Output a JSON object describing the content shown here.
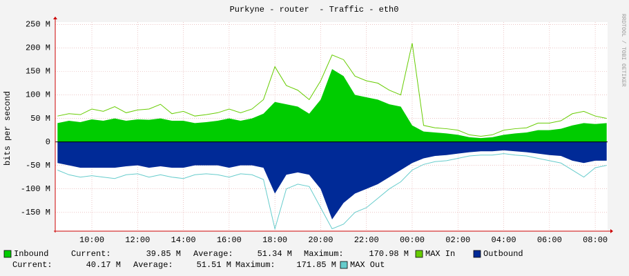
{
  "chart_data": {
    "type": "area",
    "title": "Purkyne - router  - Traffic - eth0",
    "y_label": "bits per second",
    "side_note": "RRDTOOL / TOBI OETIKER",
    "stat_labels": [
      "Current:",
      "Average:",
      "Maximum:"
    ],
    "x": [
      8.5,
      9,
      9.5,
      10,
      10.5,
      11,
      11.5,
      12,
      12.5,
      13,
      13.5,
      14,
      14.5,
      15,
      15.5,
      16,
      16.5,
      17,
      17.5,
      18,
      18.5,
      19,
      19.5,
      20,
      20.5,
      21,
      21.5,
      22,
      22.5,
      23,
      23.5,
      24,
      24.5,
      25,
      25.5,
      26,
      26.5,
      27,
      27.5,
      28,
      28.5,
      29,
      29.5,
      30,
      30.5,
      31,
      31.5,
      32,
      32.5
    ],
    "xlim": [
      8.4,
      32.54
    ],
    "xticks": [
      {
        "value": 10,
        "label": "10:00"
      },
      {
        "value": 12,
        "label": "12:00"
      },
      {
        "value": 14,
        "label": "14:00"
      },
      {
        "value": 16,
        "label": "16:00"
      },
      {
        "value": 18,
        "label": "18:00"
      },
      {
        "value": 20,
        "label": "20:00"
      },
      {
        "value": 22,
        "label": "22:00"
      },
      {
        "value": 24,
        "label": "00:00"
      },
      {
        "value": 26,
        "label": "02:00"
      },
      {
        "value": 28,
        "label": "04:00"
      },
      {
        "value": 30,
        "label": "06:00"
      },
      {
        "value": 32,
        "label": "08:00"
      }
    ],
    "ylim": [
      -190,
      255
    ],
    "yticks": [
      {
        "value": 250,
        "label": "250 M"
      },
      {
        "value": 200,
        "label": "200 M"
      },
      {
        "value": 150,
        "label": "150 M"
      },
      {
        "value": 100,
        "label": "100 M"
      },
      {
        "value": 50,
        "label": "50 M"
      },
      0,
      {
        "value": -50,
        "label": "-50 M"
      },
      {
        "value": -100,
        "label": "-100 M"
      },
      {
        "value": -150,
        "label": "-150 M"
      }
    ],
    "grid": true,
    "series": [
      {
        "name": "Inbound",
        "color": "#00cc00",
        "style": "area",
        "values": [
          40,
          45,
          42,
          48,
          45,
          50,
          45,
          48,
          47,
          50,
          45,
          45,
          40,
          42,
          45,
          50,
          45,
          50,
          60,
          85,
          80,
          75,
          60,
          90,
          155,
          140,
          100,
          95,
          90,
          80,
          75,
          35,
          22,
          20,
          18,
          15,
          10,
          8,
          10,
          15,
          18,
          20,
          25,
          25,
          28,
          35,
          40,
          38,
          40
        ],
        "stats": [
          {
            "value": 39.85,
            "label": "39.85 M"
          },
          {
            "value": 51.34,
            "label": "51.34 M"
          },
          {
            "value": 170.98,
            "label": "170.98 M"
          }
        ]
      },
      {
        "name": "MAX In",
        "color": "#66cc00",
        "style": "line",
        "values": [
          55,
          60,
          58,
          70,
          65,
          75,
          62,
          68,
          70,
          80,
          60,
          65,
          55,
          58,
          62,
          70,
          62,
          70,
          90,
          160,
          120,
          110,
          90,
          130,
          185,
          175,
          140,
          130,
          125,
          110,
          100,
          210,
          35,
          30,
          28,
          25,
          15,
          12,
          15,
          25,
          28,
          30,
          40,
          40,
          45,
          60,
          65,
          55,
          50
        ]
      },
      {
        "name": "Outbound",
        "color": "#002a97",
        "style": "area",
        "values": [
          -45,
          -50,
          -55,
          -55,
          -55,
          -55,
          -52,
          -50,
          -55,
          -52,
          -55,
          -55,
          -50,
          -50,
          -50,
          -55,
          -50,
          -50,
          -55,
          -110,
          -70,
          -65,
          -70,
          -100,
          -165,
          -130,
          -110,
          -100,
          -90,
          -75,
          -60,
          -45,
          -35,
          -30,
          -28,
          -25,
          -22,
          -20,
          -20,
          -18,
          -20,
          -22,
          -25,
          -28,
          -30,
          -40,
          -45,
          -40,
          -40
        ],
        "stats": [
          {
            "value": 40.17,
            "label": "40.17 M"
          },
          {
            "value": 51.51,
            "label": "51.51 M"
          },
          {
            "value": 171.85,
            "label": "171.85 M"
          }
        ]
      },
      {
        "name": "MAX Out",
        "color": "#66cccc",
        "style": "line",
        "values": [
          -60,
          -70,
          -75,
          -72,
          -75,
          -78,
          -70,
          -68,
          -75,
          -70,
          -75,
          -78,
          -70,
          -68,
          -70,
          -75,
          -68,
          -70,
          -80,
          -185,
          -100,
          -90,
          -95,
          -140,
          -185,
          -175,
          -150,
          -140,
          -120,
          -100,
          -85,
          -60,
          -48,
          -42,
          -40,
          -35,
          -30,
          -28,
          -28,
          -25,
          -28,
          -30,
          -35,
          -40,
          -45,
          -60,
          -75,
          -55,
          -50
        ]
      }
    ]
  }
}
